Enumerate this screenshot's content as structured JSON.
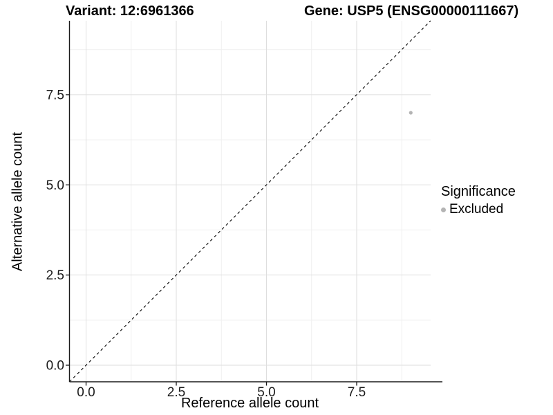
{
  "chart_data": {
    "type": "scatter",
    "title_left": "Variant: 12:6961366",
    "title_right": "Gene: USP5 (ENSG00000111667)",
    "xlabel": "Reference allele count",
    "ylabel": "Alternative allele count",
    "xlim": [
      -0.46,
      9.55
    ],
    "ylim": [
      -0.46,
      9.55
    ],
    "x_ticks": [
      0.0,
      2.5,
      5.0,
      7.5
    ],
    "y_ticks": [
      0.0,
      2.5,
      5.0,
      7.5
    ],
    "x_tick_labels": [
      "0.0",
      "2.5",
      "5.0",
      "7.5"
    ],
    "y_tick_labels": [
      "0.0",
      "2.5",
      "5.0",
      "7.5"
    ],
    "minor_ticks": [
      1.25,
      3.75,
      6.25,
      8.75
    ],
    "grid": "major_and_minor",
    "points": [
      {
        "x": 9,
        "y": 7,
        "series": "Excluded"
      }
    ],
    "reference_line": {
      "type": "identity",
      "style": "dashed",
      "color": "#000000"
    },
    "legend": {
      "title": "Significance",
      "position": "right",
      "items": [
        {
          "label": "Excluded",
          "color": "#b4b4b4"
        }
      ]
    },
    "colors": {
      "point": "#b4b4b4",
      "grid_major": "#dedede",
      "grid_minor": "#efefef",
      "axis": "#1a1a1a",
      "tick_label": "#1a1a1a"
    }
  }
}
